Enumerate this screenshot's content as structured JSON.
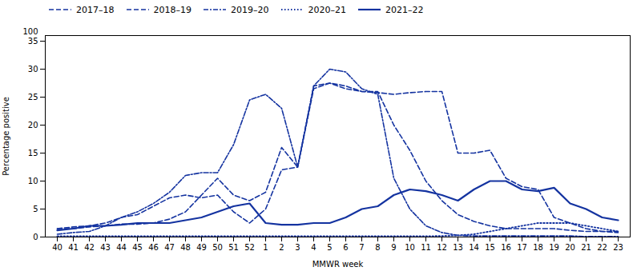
{
  "chart_data": {
    "type": "line",
    "xlabel": "MMWR week",
    "ylabel": "Percentage positive",
    "categories": [
      "40",
      "41",
      "42",
      "43",
      "44",
      "45",
      "46",
      "47",
      "48",
      "49",
      "50",
      "51",
      "52",
      "1",
      "2",
      "3",
      "4",
      "5",
      "6",
      "7",
      "8",
      "9",
      "10",
      "11",
      "12",
      "13",
      "14",
      "15",
      "16",
      "17",
      "18",
      "19",
      "20",
      "21",
      "22",
      "23"
    ],
    "ylim": [
      0,
      36
    ],
    "yticks": [
      0,
      5,
      10,
      15,
      20,
      25,
      30,
      35
    ],
    "annotations": [
      "100"
    ],
    "grid": false,
    "legend": "upper left",
    "series": [
      {
        "name": "2017–18",
        "color": "#1433a0",
        "line_style": "dashed",
        "values": [
          1.5,
          1.5,
          1.8,
          2.0,
          2.3,
          2.3,
          2.5,
          3.2,
          4.5,
          7.5,
          10.5,
          7.5,
          6.5,
          8.0,
          16.0,
          12.5,
          27.0,
          27.5,
          26.5,
          26.0,
          26.0,
          20.0,
          15.5,
          10.0,
          6.5,
          4.0,
          2.8,
          2.0,
          1.5,
          1.5,
          1.5,
          1.5,
          1.2,
          1.0,
          1.0,
          0.8
        ]
      },
      {
        "name": "2018–19",
        "color": "#1433a0",
        "line_style": "dashed",
        "values": [
          1.5,
          1.8,
          2.0,
          2.5,
          3.5,
          4.0,
          5.5,
          7.0,
          7.5,
          7.0,
          7.5,
          4.5,
          2.5,
          5.0,
          12.0,
          12.5,
          26.5,
          27.5,
          27.0,
          26.0,
          25.8,
          25.5,
          25.8,
          26.0,
          26.0,
          15.0,
          15.0,
          15.5,
          10.5,
          9.0,
          8.5,
          3.5,
          2.5,
          1.5,
          1.0,
          1.0
        ]
      },
      {
        "name": "2019–20",
        "color": "#1433a0",
        "line_style": "dashdot",
        "values": [
          0.5,
          0.8,
          1.0,
          2.0,
          3.5,
          4.5,
          6.0,
          8.0,
          11.0,
          11.5,
          11.5,
          16.5,
          24.5,
          25.5,
          23.0,
          12.5,
          27.0,
          30.0,
          29.5,
          26.5,
          25.5,
          10.5,
          5.0,
          2.0,
          0.8,
          0.3,
          0.2,
          0.2,
          0.2,
          0.2,
          0.2,
          0.2,
          0.2,
          0.1,
          0.1,
          0.1
        ]
      },
      {
        "name": "2020–21",
        "color": "#1433a0",
        "line_style": "dotted",
        "values": [
          0.15,
          0.15,
          0.15,
          0.15,
          0.15,
          0.15,
          0.15,
          0.15,
          0.15,
          0.15,
          0.15,
          0.15,
          0.15,
          0.15,
          0.15,
          0.15,
          0.15,
          0.15,
          0.15,
          0.15,
          0.15,
          0.15,
          0.15,
          0.15,
          0.2,
          0.3,
          0.5,
          1.0,
          1.5,
          2.0,
          2.5,
          2.5,
          2.5,
          2.0,
          1.5,
          1.0
        ]
      },
      {
        "name": "2021–22",
        "color": "#1433a0",
        "line_style": "solid",
        "values": [
          1.2,
          1.5,
          2.0,
          2.0,
          2.2,
          2.5,
          2.5,
          2.5,
          3.0,
          3.5,
          4.5,
          5.5,
          6.0,
          2.5,
          2.2,
          2.2,
          2.5,
          2.5,
          3.5,
          5.0,
          5.5,
          7.5,
          8.5,
          8.2,
          7.5,
          6.5,
          8.5,
          10.0,
          10.0,
          8.5,
          8.2,
          8.8,
          6.0,
          5.0,
          3.5,
          3.0
        ]
      }
    ]
  }
}
